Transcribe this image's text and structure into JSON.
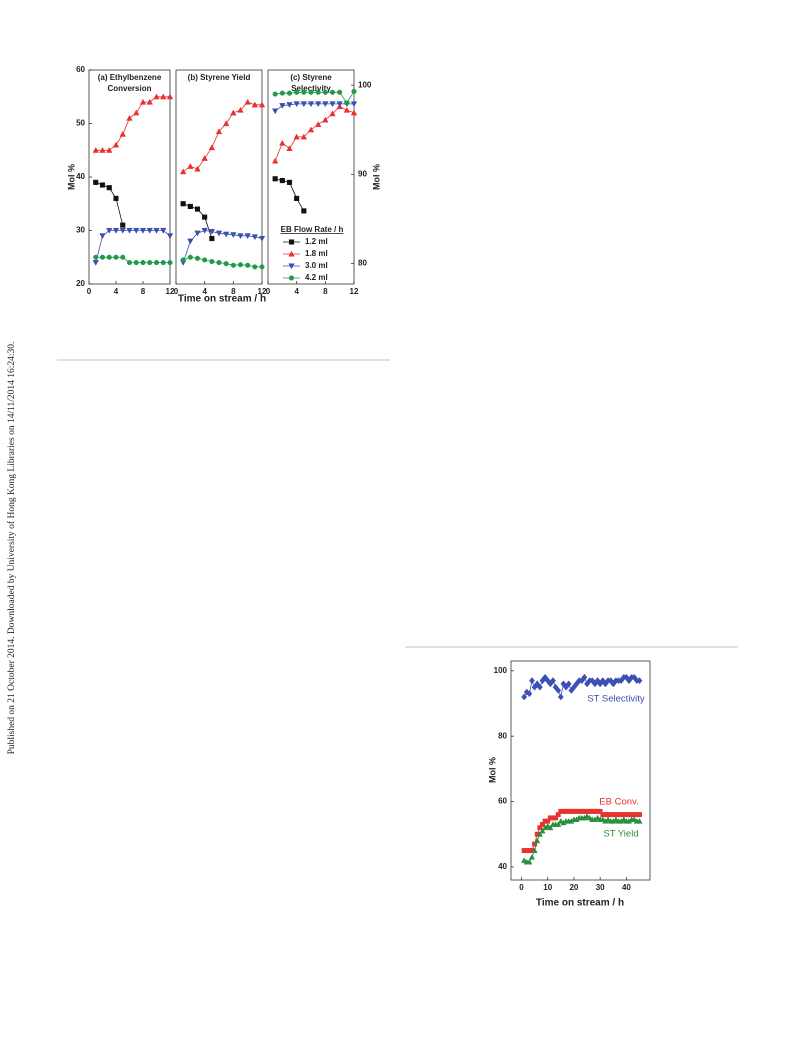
{
  "sidebar": "Published on 21 October 2014. Downloaded by University of Hong Kong Libraries on 14/11/2014 16:24:30.",
  "chart_data": [
    {
      "type": "line",
      "title": [
        "(a) Ethylbenzene",
        "Conversion"
      ],
      "ylabel": "Mol %",
      "x": [
        1,
        2,
        3,
        4,
        5,
        6,
        7,
        8,
        9,
        10,
        11,
        12
      ],
      "xlim": [
        0,
        12
      ],
      "xticks": [
        0,
        4,
        8,
        12
      ],
      "ylim": [
        20,
        60
      ],
      "yticks": [
        20,
        30,
        40,
        50,
        60
      ],
      "series": [
        {
          "color": "#111111",
          "marker": "square",
          "values": [
            39,
            38.5,
            38,
            36,
            31,
            null,
            null,
            null,
            null,
            null,
            null,
            null
          ]
        },
        {
          "color": "#e8322f",
          "marker": "triangle",
          "values": [
            45,
            45,
            45,
            46,
            48,
            51,
            52,
            54,
            54,
            55,
            55,
            55
          ]
        },
        {
          "color": "#3a4fb0",
          "marker": "triangle-down",
          "values": [
            24,
            29,
            30,
            30,
            30,
            30,
            30,
            30,
            30,
            30,
            30,
            29
          ]
        },
        {
          "color": "#1f9a4a",
          "marker": "circle",
          "values": [
            25,
            25,
            25,
            25,
            25,
            24,
            24,
            24,
            24,
            24,
            24,
            24
          ]
        }
      ]
    },
    {
      "type": "line",
      "title": [
        "(b) Styrene Yield"
      ],
      "xlabel": "Time on stream / h",
      "x": [
        1,
        2,
        3,
        4,
        5,
        6,
        7,
        8,
        9,
        10,
        11,
        12
      ],
      "xlim": [
        0,
        12
      ],
      "xticks": [
        0,
        4,
        8,
        12
      ],
      "ylim": [
        20,
        60
      ],
      "series": [
        {
          "color": "#111111",
          "marker": "square",
          "values": [
            35,
            34.5,
            34,
            32.5,
            28.5,
            null,
            null,
            null,
            null,
            null,
            null,
            null
          ]
        },
        {
          "color": "#e8322f",
          "marker": "triangle",
          "values": [
            41,
            42,
            41.5,
            43.5,
            45.5,
            48.5,
            50,
            52,
            52.5,
            54,
            53.5,
            53.5
          ]
        },
        {
          "color": "#3a4fb0",
          "marker": "triangle-down",
          "values": [
            24,
            28,
            29.5,
            30,
            29.8,
            29.5,
            29.3,
            29.2,
            29,
            29,
            28.8,
            28.5
          ]
        },
        {
          "color": "#1f9a4a",
          "marker": "circle",
          "values": [
            24.5,
            25,
            24.8,
            24.5,
            24.2,
            24,
            23.8,
            23.5,
            23.6,
            23.5,
            23.2,
            23.2
          ]
        }
      ]
    },
    {
      "type": "line",
      "title": [
        "(c) Styrene",
        "Selectivity"
      ],
      "y2label": "Mol %",
      "legend_title": "EB Flow Rate / h",
      "x": [
        1,
        2,
        3,
        4,
        5,
        6,
        7,
        8,
        9,
        10,
        11,
        12
      ],
      "xlim": [
        0,
        12
      ],
      "xticks": [
        0,
        4,
        8,
        12
      ],
      "y2lim": [
        77.7,
        101.7
      ],
      "y2ticks": [
        80,
        90,
        100
      ],
      "series": [
        {
          "name": "1.2 ml",
          "axis": "y2",
          "color": "#111111",
          "marker": "square",
          "values": [
            89.5,
            89.3,
            89.1,
            87.3,
            85.9,
            null,
            null,
            null,
            null,
            null,
            null,
            null
          ]
        },
        {
          "name": "1.8 ml",
          "axis": "y2",
          "color": "#e8322f",
          "marker": "triangle",
          "values": [
            91.5,
            93.5,
            92.9,
            94.2,
            94.2,
            95,
            95.6,
            96.1,
            96.8,
            97.6,
            97.2,
            96.9
          ]
        },
        {
          "name": "3.0 ml",
          "axis": "y2",
          "color": "#3a4fb0",
          "marker": "triangle-down",
          "values": [
            97.1,
            97.7,
            97.8,
            97.9,
            97.9,
            97.9,
            97.9,
            97.9,
            97.9,
            97.9,
            97.9,
            97.9
          ]
        },
        {
          "name": "4.2 ml",
          "axis": "y2",
          "color": "#1f9a4a",
          "marker": "circle",
          "values": [
            99,
            99.1,
            99.1,
            99.2,
            99.2,
            99.2,
            99.2,
            99.2,
            99.2,
            99.2,
            98,
            99.3
          ]
        }
      ]
    },
    {
      "type": "line",
      "ylabel": "Mol %",
      "xlabel": "Time on stream / h",
      "x": [
        1,
        2,
        3,
        4,
        5,
        6,
        7,
        8,
        9,
        10,
        11,
        12,
        13,
        14,
        15,
        16,
        17,
        18,
        19,
        20,
        21,
        22,
        23,
        24,
        25,
        26,
        27,
        28,
        29,
        30,
        31,
        32,
        33,
        34,
        35,
        36,
        37,
        38,
        39,
        40,
        41,
        42,
        43,
        44,
        45
      ],
      "xlim": [
        -4,
        49
      ],
      "xticks": [
        0,
        10,
        20,
        30,
        40
      ],
      "ylim": [
        36,
        103
      ],
      "yticks": [
        40,
        60,
        80,
        100
      ],
      "series": [
        {
          "name": "ST Selectivity",
          "color": "#3c4fb5",
          "marker": "diamond",
          "values": [
            92,
            93.5,
            93,
            97,
            95,
            96,
            95,
            97,
            98,
            97,
            96,
            97,
            95,
            94,
            92,
            96,
            95,
            96,
            94,
            95,
            96,
            97,
            97,
            98,
            96,
            97,
            97,
            96,
            97,
            96,
            97,
            96,
            97,
            97,
            96,
            97,
            97,
            97,
            98,
            98,
            97,
            98,
            98,
            97,
            97
          ]
        },
        {
          "name": "EB Conv.",
          "color": "#e8322f",
          "marker": "square",
          "values": [
            45,
            45,
            45,
            45,
            47,
            50,
            52,
            53,
            54,
            54,
            55,
            55,
            55,
            56,
            57,
            57,
            57,
            57,
            57,
            57,
            57,
            57,
            57,
            57,
            57,
            57,
            57,
            57,
            57,
            57,
            56,
            56,
            56,
            56,
            56,
            56,
            56,
            56,
            56,
            56,
            56,
            56,
            56,
            56,
            56
          ]
        },
        {
          "name": "ST Yield",
          "color": "#2a8f3c",
          "marker": "triangle",
          "values": [
            42,
            41.5,
            41.5,
            43,
            45,
            48,
            50,
            51,
            52,
            52.5,
            52,
            53,
            53,
            53,
            54,
            53.5,
            54,
            54,
            54,
            54.5,
            54.5,
            55,
            55,
            55,
            55.5,
            55,
            54.5,
            54.5,
            55,
            54.5,
            54.5,
            54,
            54.5,
            54,
            54,
            54.5,
            54,
            54,
            54.5,
            54,
            54,
            54.5,
            54.5,
            54,
            54
          ]
        }
      ]
    }
  ]
}
